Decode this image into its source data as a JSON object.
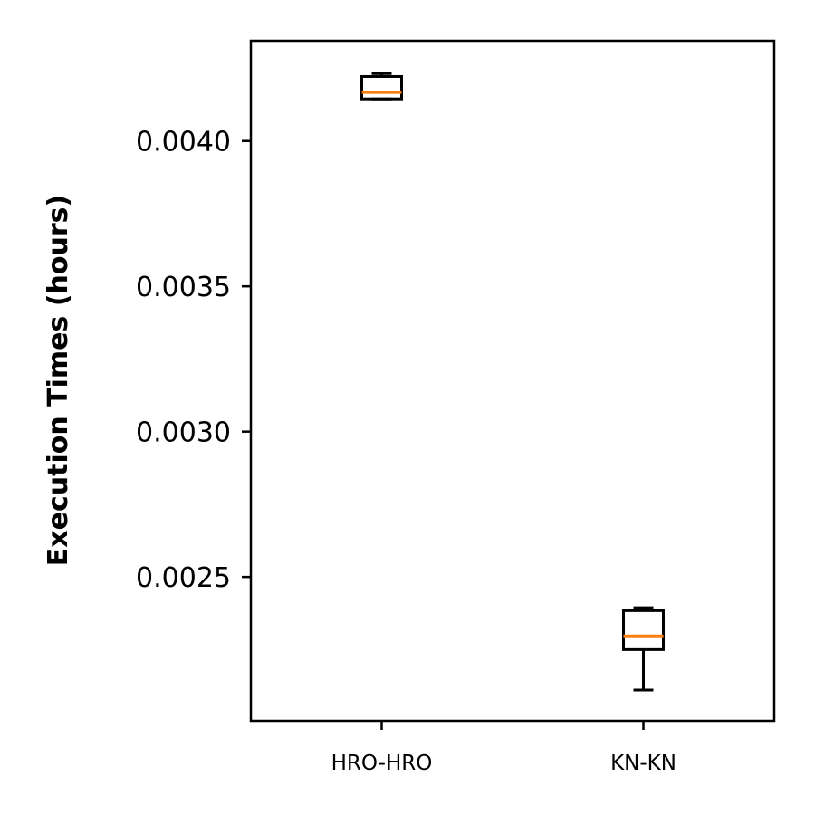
{
  "chart_data": {
    "type": "box",
    "ylabel": "Execution Times (hours)",
    "categories": [
      "HRO-HRO",
      "KN-KN"
    ],
    "ylim": [
      0.002005,
      0.004345
    ],
    "yticks": [
      0.0025,
      0.003,
      0.0035,
      0.004
    ],
    "ytick_labels": [
      "0.0025",
      "0.0030",
      "0.0035",
      "0.0040"
    ],
    "boxes": [
      {
        "name": "HRO-HRO",
        "whisker_low": 0.004145,
        "q1": 0.004145,
        "median": 0.004167,
        "q3": 0.004222,
        "whisker_high": 0.004232
      },
      {
        "name": "KN-KN",
        "whisker_low": 0.002111,
        "q1": 0.00225,
        "median": 0.002297,
        "q3": 0.002384,
        "whisker_high": 0.002394
      }
    ],
    "grid": false,
    "colors": {
      "box": "#000000",
      "median": "#ff7f0e",
      "axis": "#000000",
      "background": "#ffffff"
    }
  }
}
